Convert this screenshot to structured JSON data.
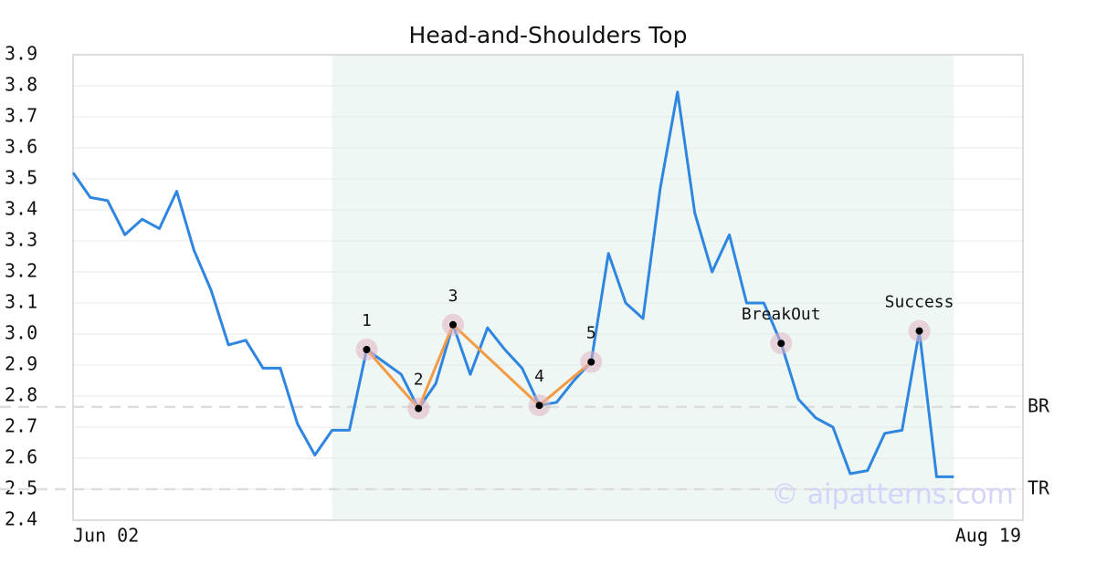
{
  "chart_data": {
    "type": "line",
    "title": "Head-and-Shoulders Top",
    "x": [
      0,
      1,
      2,
      3,
      4,
      5,
      6,
      7,
      8,
      9,
      10,
      11,
      12,
      13,
      14,
      15,
      16,
      17,
      18,
      19,
      20,
      21,
      22,
      23,
      24,
      25,
      26,
      27,
      28,
      29,
      30,
      31,
      32,
      33,
      34,
      35,
      36,
      37,
      38,
      39,
      40,
      41,
      42,
      43,
      44,
      45,
      46,
      47,
      48,
      49,
      50,
      51
    ],
    "values": [
      3.52,
      3.44,
      3.43,
      3.32,
      3.37,
      3.34,
      3.46,
      3.27,
      3.14,
      2.965,
      2.98,
      2.89,
      2.89,
      2.71,
      2.61,
      2.69,
      2.69,
      2.95,
      2.91,
      2.87,
      2.76,
      2.84,
      3.03,
      2.87,
      3.02,
      2.95,
      2.89,
      2.77,
      2.78,
      2.85,
      2.91,
      3.26,
      3.1,
      3.05,
      3.47,
      3.78,
      3.39,
      3.2,
      3.32,
      3.1,
      3.1,
      2.97,
      2.79,
      2.73,
      2.7,
      2.55,
      2.56,
      2.68,
      2.69,
      3.01,
      2.54,
      2.54
    ],
    "color": "#2f86e0",
    "xlim": [
      0,
      55
    ],
    "xticks": [
      {
        "value": 0,
        "label": "Jun 02"
      },
      {
        "value": 55,
        "label": "Aug 19"
      }
    ],
    "ylim": [
      2.4,
      3.9
    ],
    "yticks": [
      2.4,
      2.5,
      2.6,
      2.7,
      2.8,
      2.9,
      {
        "value": 3,
        "label": "3.0"
      },
      3.1,
      3.2,
      3.3,
      3.4,
      3.5,
      3.6,
      3.7,
      3.8,
      3.9
    ],
    "grid": true,
    "highlight": [
      15,
      51
    ],
    "pattern": {
      "color": "#f39a45",
      "points": [
        {
          "x": 17,
          "y": 2.95,
          "label": "1"
        },
        {
          "x": 20,
          "y": 2.76,
          "label": "2"
        },
        {
          "x": 22,
          "y": 3.03,
          "label": "3"
        },
        {
          "x": 27,
          "y": 2.77,
          "label": "4"
        },
        {
          "x": 30,
          "y": 2.91,
          "label": "5"
        }
      ]
    },
    "annotations": [
      {
        "x": 41,
        "y": 2.97,
        "label": "BreakOut"
      },
      {
        "x": 49,
        "y": 3.01,
        "label": "Success"
      }
    ],
    "levels": [
      {
        "value": 2.765,
        "label": "BR"
      },
      {
        "value": 2.5,
        "label": "TR"
      }
    ],
    "watermark": "© aipatterns.com"
  }
}
